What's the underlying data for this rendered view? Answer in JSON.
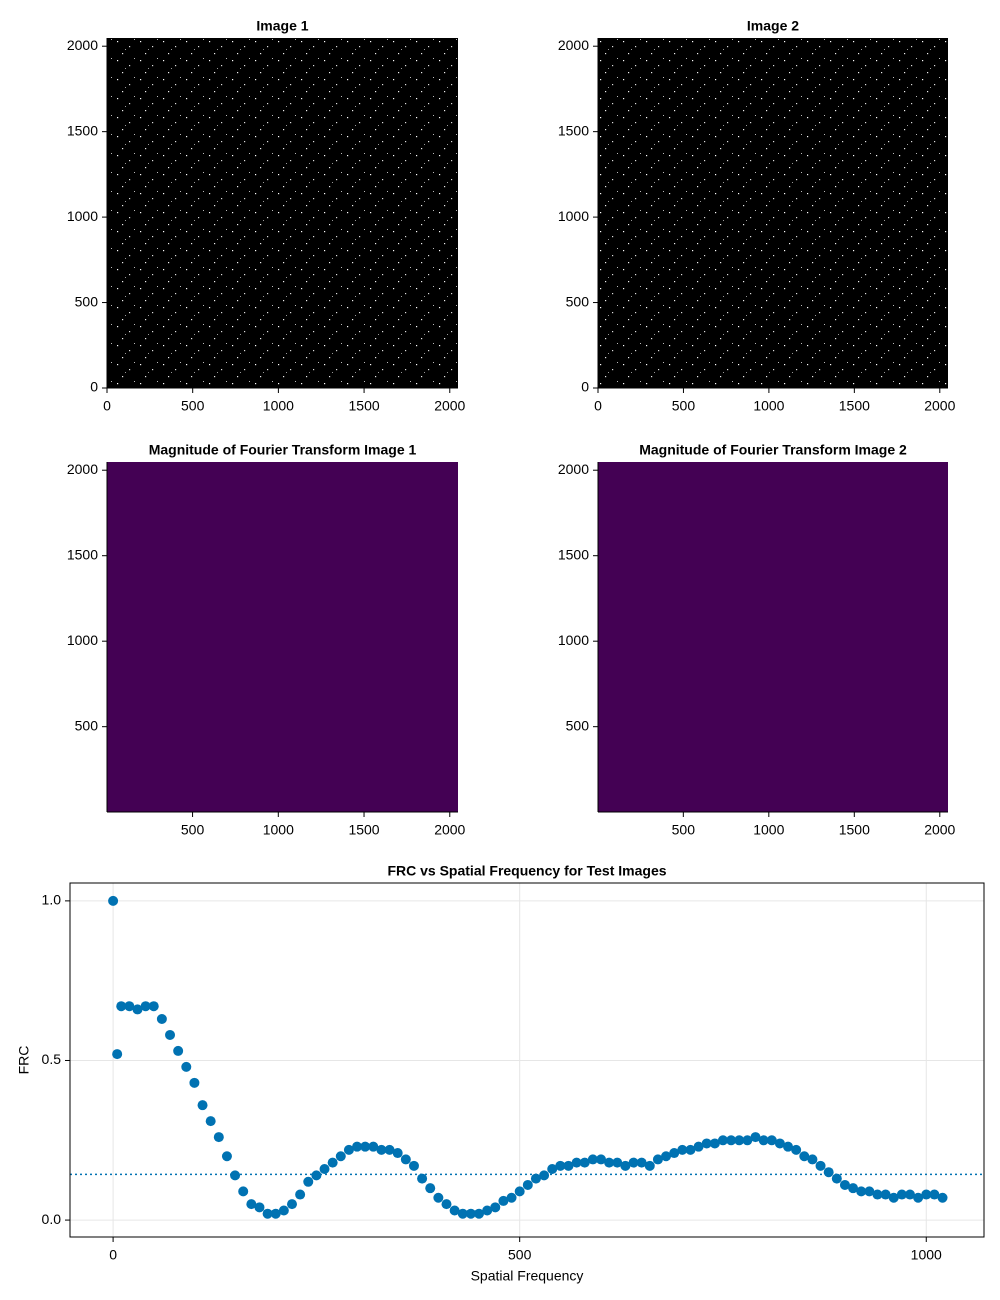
{
  "chart_data": [
    {
      "type": "image",
      "title": "Image 1",
      "color": "#000000",
      "xlim": [
        0,
        2048
      ],
      "ylim": [
        0,
        2048
      ],
      "xticks": [
        0,
        500,
        1000,
        1500,
        2000
      ],
      "yticks": [
        0,
        500,
        1000,
        1500,
        2000
      ]
    },
    {
      "type": "image",
      "title": "Image 2",
      "color": "#000000",
      "xlim": [
        0,
        2048
      ],
      "ylim": [
        0,
        2048
      ],
      "xticks": [
        0,
        500,
        1000,
        1500,
        2000
      ],
      "yticks": [
        0,
        500,
        1000,
        1500,
        2000
      ]
    },
    {
      "type": "heatmap",
      "title": "Magnitude of Fourier Transform Image 1",
      "color": "#440154",
      "xlim": [
        1,
        2048
      ],
      "ylim": [
        1,
        2048
      ],
      "xticks": [
        500,
        1000,
        1500,
        2000
      ],
      "yticks": [
        500,
        1000,
        1500,
        2000
      ]
    },
    {
      "type": "heatmap",
      "title": "Magnitude of Fourier Transform Image 2",
      "color": "#440154",
      "xlim": [
        1,
        2048
      ],
      "ylim": [
        1,
        2048
      ],
      "xticks": [
        500,
        1000,
        1500,
        2000
      ],
      "yticks": [
        500,
        1000,
        1500,
        2000
      ]
    },
    {
      "type": "scatter",
      "title": "FRC vs Spatial Frequency for Test Images",
      "xlabel": "Spatial Frequency",
      "ylabel": "FRC",
      "xlim": [
        -53,
        1071
      ],
      "ylim": [
        -0.053,
        1.056
      ],
      "xticks": [
        0,
        500,
        1000
      ],
      "yticks": [
        0.0,
        0.5,
        1.0
      ],
      "grid": true,
      "threshold": 0.143,
      "threshold_color": "#0072b2",
      "x": [
        0,
        5,
        10,
        20,
        30,
        40,
        50,
        60,
        70,
        80,
        90,
        100,
        110,
        120,
        130,
        140,
        150,
        160,
        170,
        180,
        190,
        200,
        210,
        220,
        230,
        240,
        250,
        260,
        270,
        280,
        290,
        300,
        310,
        320,
        330,
        340,
        350,
        360,
        370,
        380,
        390,
        400,
        410,
        420,
        430,
        440,
        450,
        460,
        470,
        480,
        490,
        500,
        510,
        520,
        530,
        540,
        550,
        560,
        570,
        580,
        590,
        600,
        610,
        620,
        630,
        640,
        650,
        660,
        670,
        680,
        690,
        700,
        710,
        720,
        730,
        740,
        750,
        760,
        770,
        780,
        790,
        800,
        810,
        820,
        830,
        840,
        850,
        860,
        870,
        880,
        890,
        900,
        910,
        920,
        930,
        940,
        950,
        960,
        970,
        980,
        990,
        1000,
        1010,
        1020
      ],
      "series": [
        {
          "color": "#0072b2",
          "values": [
            1.0,
            0.52,
            0.67,
            0.67,
            0.66,
            0.67,
            0.67,
            0.63,
            0.58,
            0.53,
            0.48,
            0.43,
            0.36,
            0.31,
            0.26,
            0.2,
            0.14,
            0.09,
            0.05,
            0.04,
            0.02,
            0.02,
            0.03,
            0.05,
            0.08,
            0.12,
            0.14,
            0.16,
            0.18,
            0.2,
            0.22,
            0.23,
            0.23,
            0.23,
            0.22,
            0.22,
            0.21,
            0.19,
            0.17,
            0.13,
            0.1,
            0.07,
            0.05,
            0.03,
            0.02,
            0.02,
            0.02,
            0.03,
            0.04,
            0.06,
            0.07,
            0.09,
            0.11,
            0.13,
            0.14,
            0.16,
            0.17,
            0.17,
            0.18,
            0.18,
            0.19,
            0.19,
            0.18,
            0.18,
            0.17,
            0.18,
            0.18,
            0.17,
            0.19,
            0.2,
            0.21,
            0.22,
            0.22,
            0.23,
            0.24,
            0.24,
            0.25,
            0.25,
            0.25,
            0.25,
            0.26,
            0.25,
            0.25,
            0.24,
            0.23,
            0.22,
            0.2,
            0.19,
            0.17,
            0.15,
            0.13,
            0.11,
            0.1,
            0.09,
            0.09,
            0.08,
            0.08,
            0.07,
            0.08,
            0.08,
            0.07,
            0.08,
            0.08,
            0.07
          ]
        }
      ]
    }
  ]
}
